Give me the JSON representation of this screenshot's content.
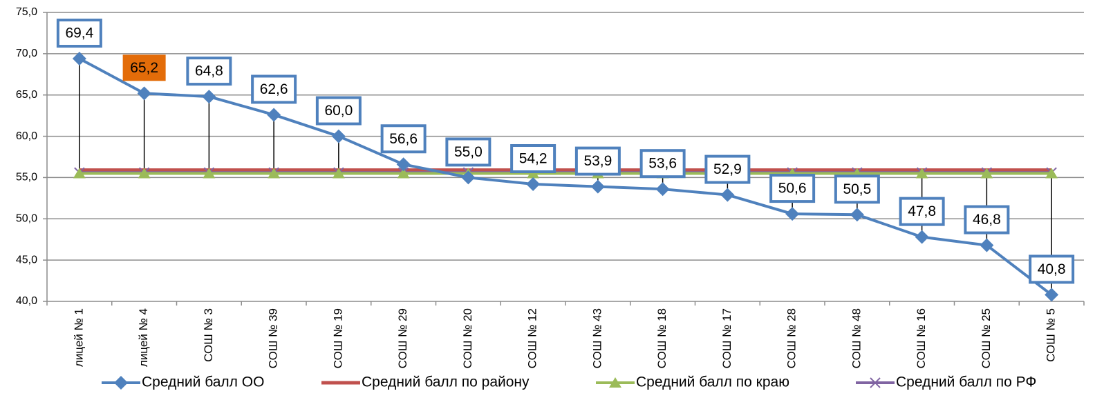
{
  "chart_data": {
    "type": "line",
    "categories": [
      "лицей № 1",
      "лицей № 4",
      "СОШ № 3",
      "СОШ № 39",
      "СОШ № 19",
      "СОШ № 29",
      "СОШ № 20",
      "СОШ № 12",
      "СОШ № 43",
      "СОШ № 18",
      "СОШ № 17",
      "СОШ № 28",
      "СОШ № 48",
      "СОШ № 16",
      "СОШ № 25",
      "СОШ № 5"
    ],
    "series": [
      {
        "name": "Средний балл ОО",
        "color": "#4f81bd",
        "marker": "diamond",
        "values": [
          69.4,
          65.2,
          64.8,
          62.6,
          60.0,
          56.6,
          55.0,
          54.2,
          53.9,
          53.6,
          52.9,
          50.6,
          50.5,
          47.8,
          46.8,
          40.8
        ],
        "value_labels": [
          "69,4",
          "65,2",
          "64,8",
          "62,6",
          "60,0",
          "56,6",
          "55,0",
          "54,2",
          "53,9",
          "53,6",
          "52,9",
          "50,6",
          "50,5",
          "47,8",
          "46,8",
          "40,8"
        ]
      },
      {
        "name": "Средний балл по району",
        "color": "#c0504d",
        "marker": "none",
        "values": [
          55.9,
          55.9,
          55.9,
          55.9,
          55.9,
          55.9,
          55.9,
          55.9,
          55.9,
          55.9,
          55.9,
          55.9,
          55.9,
          55.9,
          55.9,
          55.9
        ]
      },
      {
        "name": "Средний балл по краю",
        "color": "#9bbb59",
        "marker": "triangle",
        "values": [
          55.5,
          55.5,
          55.5,
          55.5,
          55.5,
          55.5,
          55.5,
          55.5,
          55.5,
          55.5,
          55.5,
          55.5,
          55.5,
          55.5,
          55.5,
          55.5
        ]
      },
      {
        "name": "Средний балл по РФ",
        "color": "#8064a2",
        "marker": "x",
        "values": [
          55.6,
          55.6,
          55.6,
          55.6,
          55.6,
          55.6,
          55.6,
          55.6,
          55.6,
          55.6,
          55.6,
          55.6,
          55.6,
          55.6,
          55.6,
          55.6
        ]
      }
    ],
    "highlighted_label": {
      "index": 1,
      "color": "#e36c09"
    },
    "ylim": [
      40,
      75
    ],
    "yticks": [
      {
        "value": 40,
        "label": "40,0"
      },
      {
        "value": 45,
        "label": "45,0"
      },
      {
        "value": 50,
        "label": "50,0"
      },
      {
        "value": 55,
        "label": "55,0"
      },
      {
        "value": 60,
        "label": "60,0"
      },
      {
        "value": 65,
        "label": "65,0"
      },
      {
        "value": 70,
        "label": "70,0"
      },
      {
        "value": 75,
        "label": "75,0"
      }
    ],
    "grid": true,
    "high_low_lines": true,
    "legend": "bottom"
  }
}
